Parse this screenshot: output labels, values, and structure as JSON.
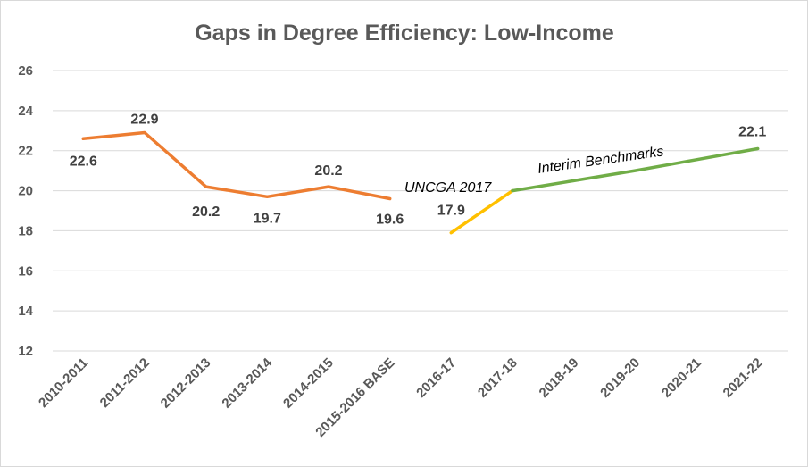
{
  "chart_data": {
    "type": "line",
    "title": "Gaps in Degree Efficiency: Low-Income",
    "xlabel": "",
    "ylabel": "",
    "categories": [
      "2010-2011",
      "2011-2012",
      "2012-2013",
      "2013-2014",
      "2014-2015",
      "2015-2016 BASE",
      "2016-17",
      "2017-18",
      "2018-19",
      "2019-20",
      "2020-21",
      "2021-22"
    ],
    "ylim": [
      12,
      26
    ],
    "yticks": [
      "26",
      "24",
      "22",
      "20",
      "18",
      "16",
      "14",
      "12"
    ],
    "grid": true,
    "legend": "none",
    "series": [
      {
        "color": "#ed7d31",
        "values": [
          22.6,
          22.9,
          20.2,
          19.7,
          20.2,
          19.6,
          null,
          null,
          null,
          null,
          null,
          null
        ],
        "labels": [
          "22.6",
          "22.9",
          "20.2",
          "19.7",
          "20.2",
          "19.6"
        ]
      },
      {
        "color": "#ffc000",
        "values": [
          null,
          null,
          null,
          null,
          null,
          null,
          17.9,
          20.0,
          null,
          null,
          null,
          null
        ],
        "labels": [
          "17.9"
        ]
      },
      {
        "color": "#70ad47",
        "values": [
          null,
          null,
          null,
          null,
          null,
          null,
          null,
          20.0,
          20.5,
          21.0,
          21.55,
          22.1
        ],
        "labels": [
          "22.1"
        ]
      }
    ],
    "annotations": [
      {
        "text": "UNCGA 2017"
      },
      {
        "text": "Interim Benchmarks"
      }
    ]
  }
}
